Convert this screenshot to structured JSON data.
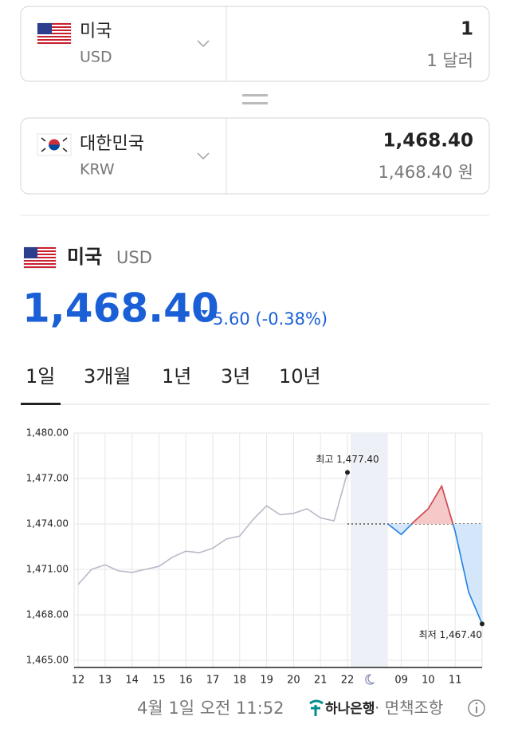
{
  "converter": {
    "from": {
      "country": "미국",
      "code": "USD",
      "amount": "1",
      "amount_text": "1 달러"
    },
    "to": {
      "country": "대한민국",
      "code": "KRW",
      "amount": "1,468.40",
      "amount_text": "1,468.40 원"
    }
  },
  "quote": {
    "country": "미국",
    "code": "USD",
    "rate": "1,468.40",
    "change": "5.60 (-0.38%)"
  },
  "tabs": [
    "1일",
    "3개월",
    "1년",
    "3년",
    "10년"
  ],
  "chart_data": {
    "type": "line",
    "categories": [
      "12",
      null,
      "13",
      null,
      "14",
      null,
      "15",
      null,
      "16",
      null,
      "17",
      null,
      "18",
      null,
      "19",
      null,
      "20",
      null,
      "21",
      null,
      "22",
      null,
      null,
      null,
      "09",
      null,
      "10",
      null,
      "11",
      null,
      null
    ],
    "series": [
      {
        "color": "#b9b9c9",
        "values": [
          1470.0,
          1471.0,
          1471.3,
          1470.9,
          1470.8,
          1471.0,
          1471.2,
          1471.8,
          1472.2,
          1472.1,
          1472.4,
          1473.0,
          1473.2,
          1474.3,
          1475.2,
          1474.6,
          1474.7,
          1475.0,
          1474.4,
          1474.2,
          1477.4,
          null,
          null,
          null,
          null,
          null,
          null,
          null,
          null,
          null,
          null
        ]
      },
      {
        "color": "#1f80e0",
        "values": [
          null,
          null,
          null,
          null,
          null,
          null,
          null,
          null,
          null,
          null,
          null,
          null,
          null,
          null,
          null,
          null,
          null,
          null,
          null,
          null,
          null,
          null,
          null,
          1474.0,
          1473.3,
          1474.2,
          1475.0,
          1476.5,
          1473.5,
          1469.5,
          1467.4
        ]
      }
    ],
    "ylim": [
      1465,
      1480
    ],
    "yticks": [
      {
        "value": 1465,
        "label": "1,465.00"
      },
      {
        "value": 1468,
        "label": "1,468.00"
      },
      {
        "value": 1471,
        "label": "1,471.00"
      },
      {
        "value": 1474,
        "label": "1,474.00"
      },
      {
        "value": 1477,
        "label": "1,477.00"
      },
      {
        "value": 1480,
        "label": "1,480.00"
      }
    ],
    "grid": true,
    "reference_line": 1474,
    "fill_above": "#f6c9c9",
    "fill_below": "#d3e6fa",
    "annotations": [
      {
        "text": "최고 1,477.40",
        "value": 1477.4
      },
      {
        "text": "최저 1,467.40",
        "value": 1467.4
      }
    ]
  },
  "footer": {
    "timestamp": "4월 1일 오전 11:52",
    "bank": "하나은행",
    "disclaimer": "· 면책조항"
  }
}
